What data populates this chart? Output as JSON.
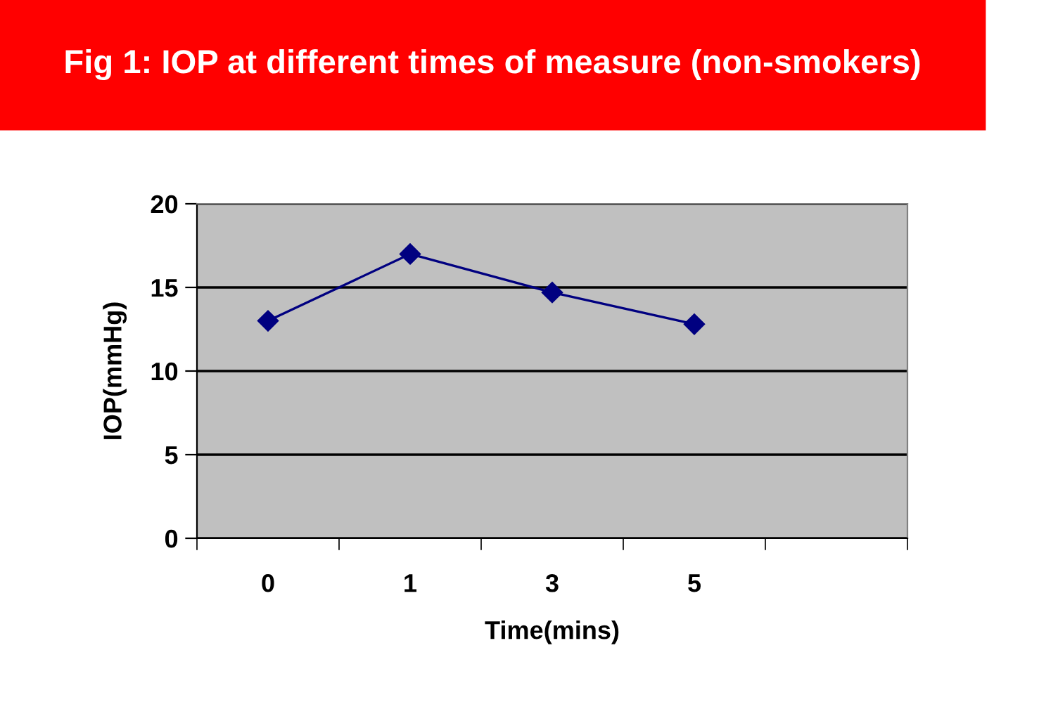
{
  "chart_data": {
    "type": "line",
    "title": "Fig 1: IOP at different times of measure (non-smokers)",
    "xlabel": "Time(mins)",
    "ylabel": "IOP(mmHg)",
    "categories": [
      "0",
      "1",
      "3",
      "5",
      null
    ],
    "series": [
      {
        "color": "#000080",
        "values": [
          13,
          17,
          14.7,
          12.8,
          null
        ]
      }
    ],
    "ylim": [
      0,
      20
    ],
    "yticks": [
      0,
      5,
      10,
      15,
      20
    ],
    "grid": "y",
    "marker": "diamond",
    "line_style": "solid"
  }
}
